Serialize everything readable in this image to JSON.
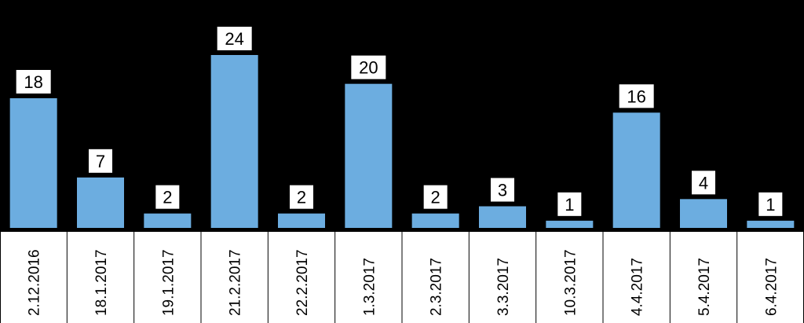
{
  "chart_data": {
    "type": "bar",
    "categories": [
      "2.12.2016",
      "18.1.2017",
      "19.1.2017",
      "21.2.2017",
      "22.2.2017",
      "1.3.2017",
      "2.3.2017",
      "3.3.2017",
      "10.3.2017",
      "4.4.2017",
      "5.4.2017",
      "6.4.2017"
    ],
    "values": [
      18,
      7,
      2,
      24,
      2,
      20,
      2,
      3,
      1,
      16,
      4,
      1
    ],
    "data_labels": [
      "18",
      "7",
      "2",
      "24",
      "2",
      "20",
      "2",
      "3",
      "1",
      "16",
      "4",
      "1"
    ],
    "title": "",
    "xlabel": "",
    "ylabel": "",
    "ylim": [
      0,
      24
    ],
    "grid": false,
    "colors": {
      "background": "#000000",
      "bar": "#6cade0",
      "axis_band": "#ffffff",
      "label_box": "#ffffff"
    }
  }
}
